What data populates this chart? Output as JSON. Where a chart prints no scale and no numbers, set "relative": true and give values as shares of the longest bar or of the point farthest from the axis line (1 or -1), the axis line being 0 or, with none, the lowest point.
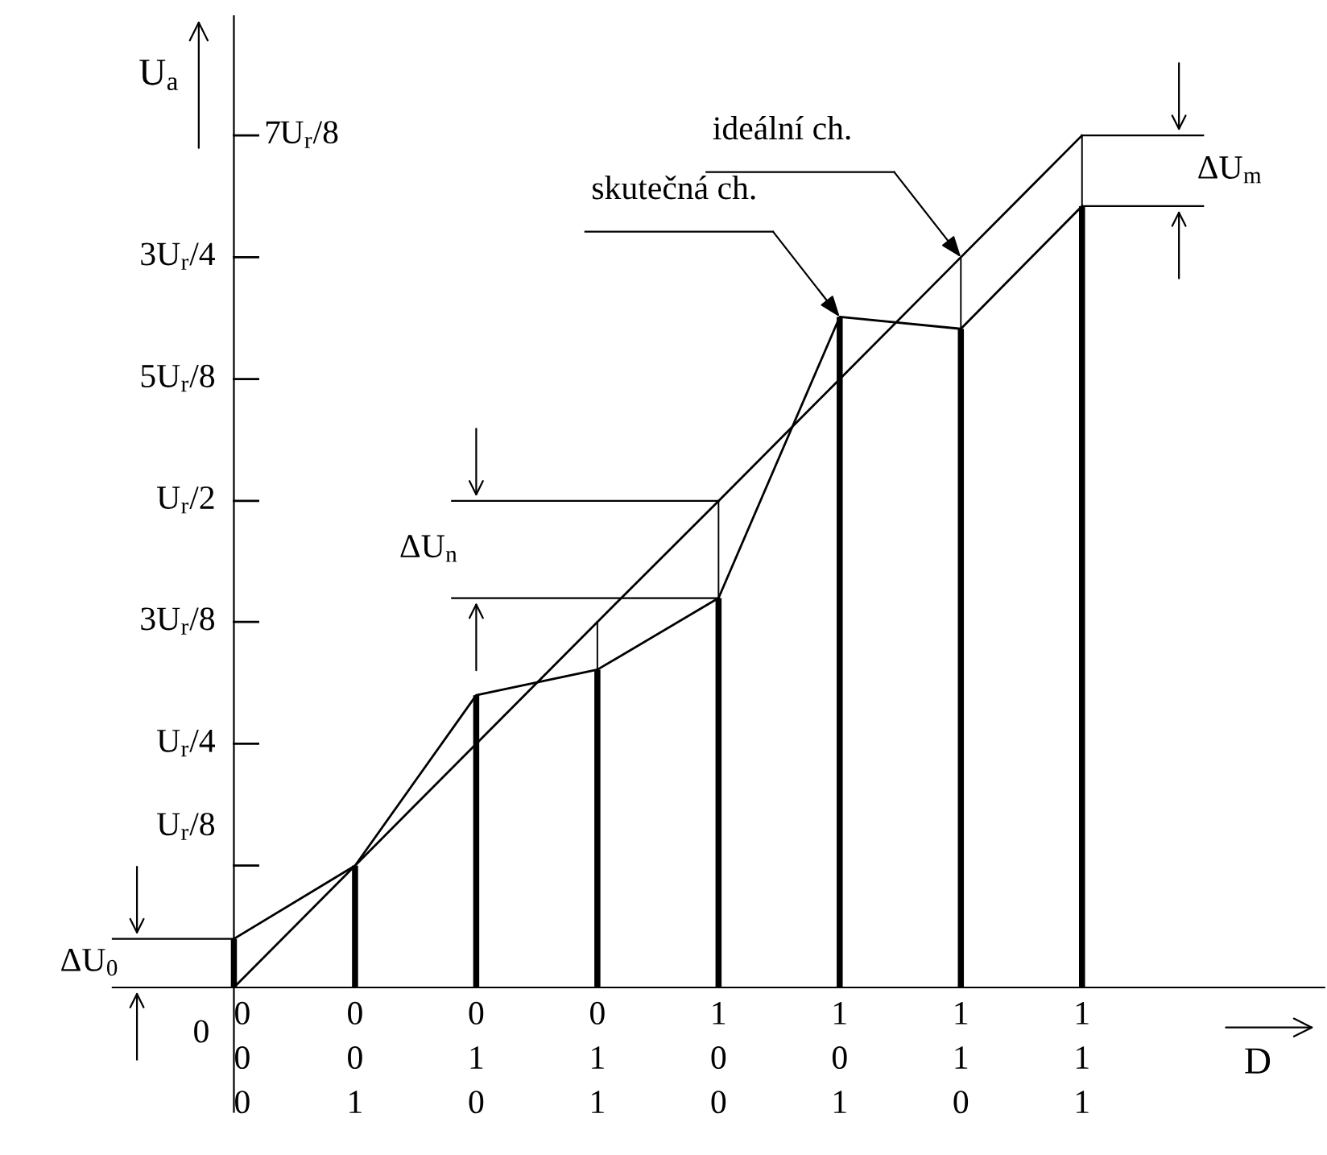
{
  "chart_data": {
    "type": "line",
    "relative": true,
    "ylabel": "U$_{a}$",
    "xlabel": "D",
    "categories": [
      "0\n0\n0",
      "0\n0\n1",
      "0\n1\n0",
      "0\n1\n1",
      "1\n0\n0",
      "1\n0\n1",
      "1\n1\n0",
      "1\n1\n1"
    ],
    "series": [
      {
        "color": "#000000",
        "values": [
          0,
          0.143,
          0.286,
          0.429,
          0.571,
          0.714,
          0.857,
          1
        ]
      },
      {
        "color": "#000000",
        "values": [
          0.057,
          0.143,
          0.343,
          0.373,
          0.457,
          0.787,
          0.773,
          0.917
        ]
      },
      {
        "type": "bar",
        "color": "#000000",
        "values": [
          0.057,
          0.143,
          0.343,
          0.373,
          0.457,
          0.787,
          0.773,
          0.917
        ]
      }
    ],
    "annotations": [
      "0",
      "U$_{r}$/8",
      "U$_{r}$/4",
      "3U$_{r}$/8",
      "U$_{r}$/2",
      "5U$_{r}$/8",
      "3U$_{r}$/4",
      "7U$_{r}$/8",
      "ideální ch.",
      "skutečná ch.",
      "ΔU$_{0}$",
      "ΔU$_{n}$",
      "ΔU$_{m}$"
    ]
  }
}
